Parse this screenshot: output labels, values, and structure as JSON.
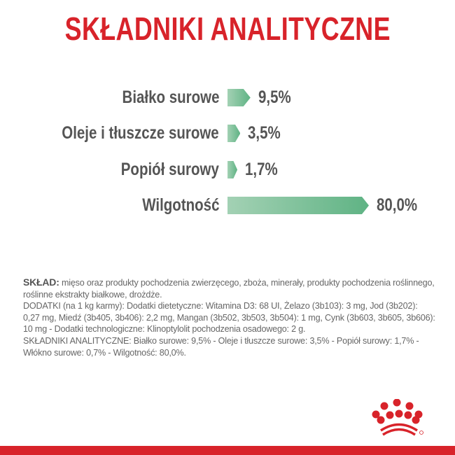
{
  "title": "SKŁADNIKI ANALITYCZNE",
  "colors": {
    "accent": "#d8232a",
    "bar_start": "#a3d1b4",
    "bar_end": "#5fb384",
    "text": "#555555"
  },
  "chart_data": {
    "type": "bar",
    "orientation": "horizontal",
    "title": "SKŁADNIKI ANALITYCZNE",
    "categories": [
      "Białko surowe",
      "Oleje i tłuszcze surowe",
      "Popiół surowy",
      "Wilgotność"
    ],
    "values": [
      9.5,
      3.5,
      1.7,
      80.0
    ],
    "value_labels": [
      "9,5%",
      "3,5%",
      "1,7%",
      "80,0%"
    ],
    "unit": "%",
    "grid": false
  },
  "composition": {
    "sklad_label": "SKŁAD:",
    "sklad_text": " mięso oraz produkty pochodzenia zwierzęcego, zboża, minerały, produkty pochodzenia roślinnego, roślinne ekstrakty białkowe, drożdże.",
    "dodatki": "DODATKI (na 1 kg karmy): Dodatki dietetyczne: Witamina D3: 68 UI, Żelazo (3b103): 3 mg, Jod (3b202): 0,27 mg, Miedź (3b405, 3b406): 2,2 mg, Mangan (3b502, 3b503, 3b504): 1 mg, Cynk (3b603, 3b605, 3b606): 10 mg - Dodatki technologiczne: Klinoptylolit pochodzenia osadowego: 2 g.",
    "analityczne": "SKŁADNIKI ANALITYCZNE: Białko surowe: 9,5% - Oleje i tłuszcze surowe: 3,5% - Popiół surowy: 1,7% - Włókno surowe: 0,7% - Wilgotność: 80,0%."
  },
  "logo": {
    "name": "royal-canin-crown-logo"
  }
}
